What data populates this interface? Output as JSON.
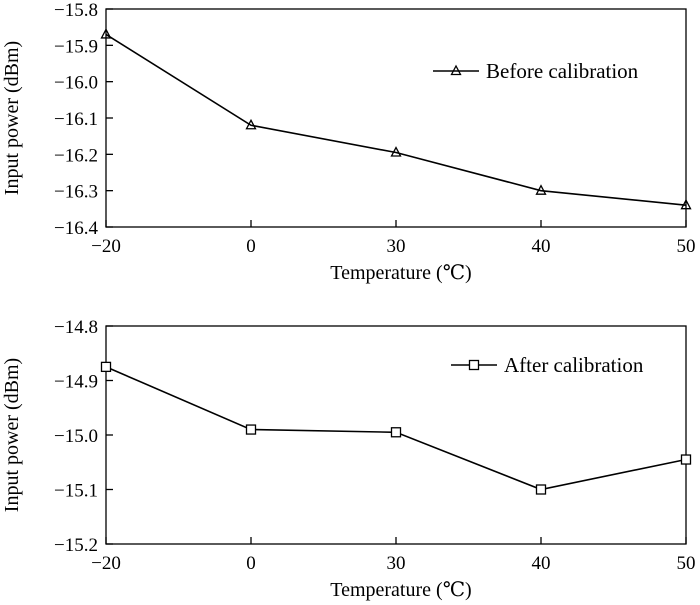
{
  "chart_data": [
    {
      "type": "line",
      "title": "",
      "xlabel": "Temperature (℃)",
      "ylabel": "Input power (dBm)",
      "categories": [
        "−20",
        "0",
        "30",
        "40",
        "50"
      ],
      "ylim": [
        -16.4,
        -15.8
      ],
      "yticks": [
        -15.8,
        -15.9,
        -16.0,
        -16.1,
        -16.2,
        -16.3,
        -16.4
      ],
      "ytick_labels": [
        "−15.8",
        "−15.9",
        "−16.0",
        "−16.1",
        "−16.2",
        "−16.3",
        "−16.4"
      ],
      "grid": false,
      "legend_position": "top-right",
      "series": [
        {
          "name": "Before calibration",
          "marker": "triangle",
          "values": [
            -15.87,
            -16.12,
            -16.195,
            -16.3,
            -16.34
          ]
        }
      ]
    },
    {
      "type": "line",
      "title": "",
      "xlabel": "Temperature (℃)",
      "ylabel": "Input power (dBm)",
      "categories": [
        "−20",
        "0",
        "30",
        "40",
        "50"
      ],
      "ylim": [
        -15.2,
        -14.8
      ],
      "yticks": [
        -14.8,
        -14.9,
        -15.0,
        -15.1,
        -15.2
      ],
      "ytick_labels": [
        "−14.8",
        "−14.9",
        "−15.0",
        "−15.1",
        "−15.2"
      ],
      "grid": false,
      "legend_position": "top-right",
      "series": [
        {
          "name": "After calibration",
          "marker": "square",
          "values": [
            -14.875,
            -14.99,
            -14.995,
            -15.1,
            -15.045
          ]
        }
      ]
    }
  ]
}
